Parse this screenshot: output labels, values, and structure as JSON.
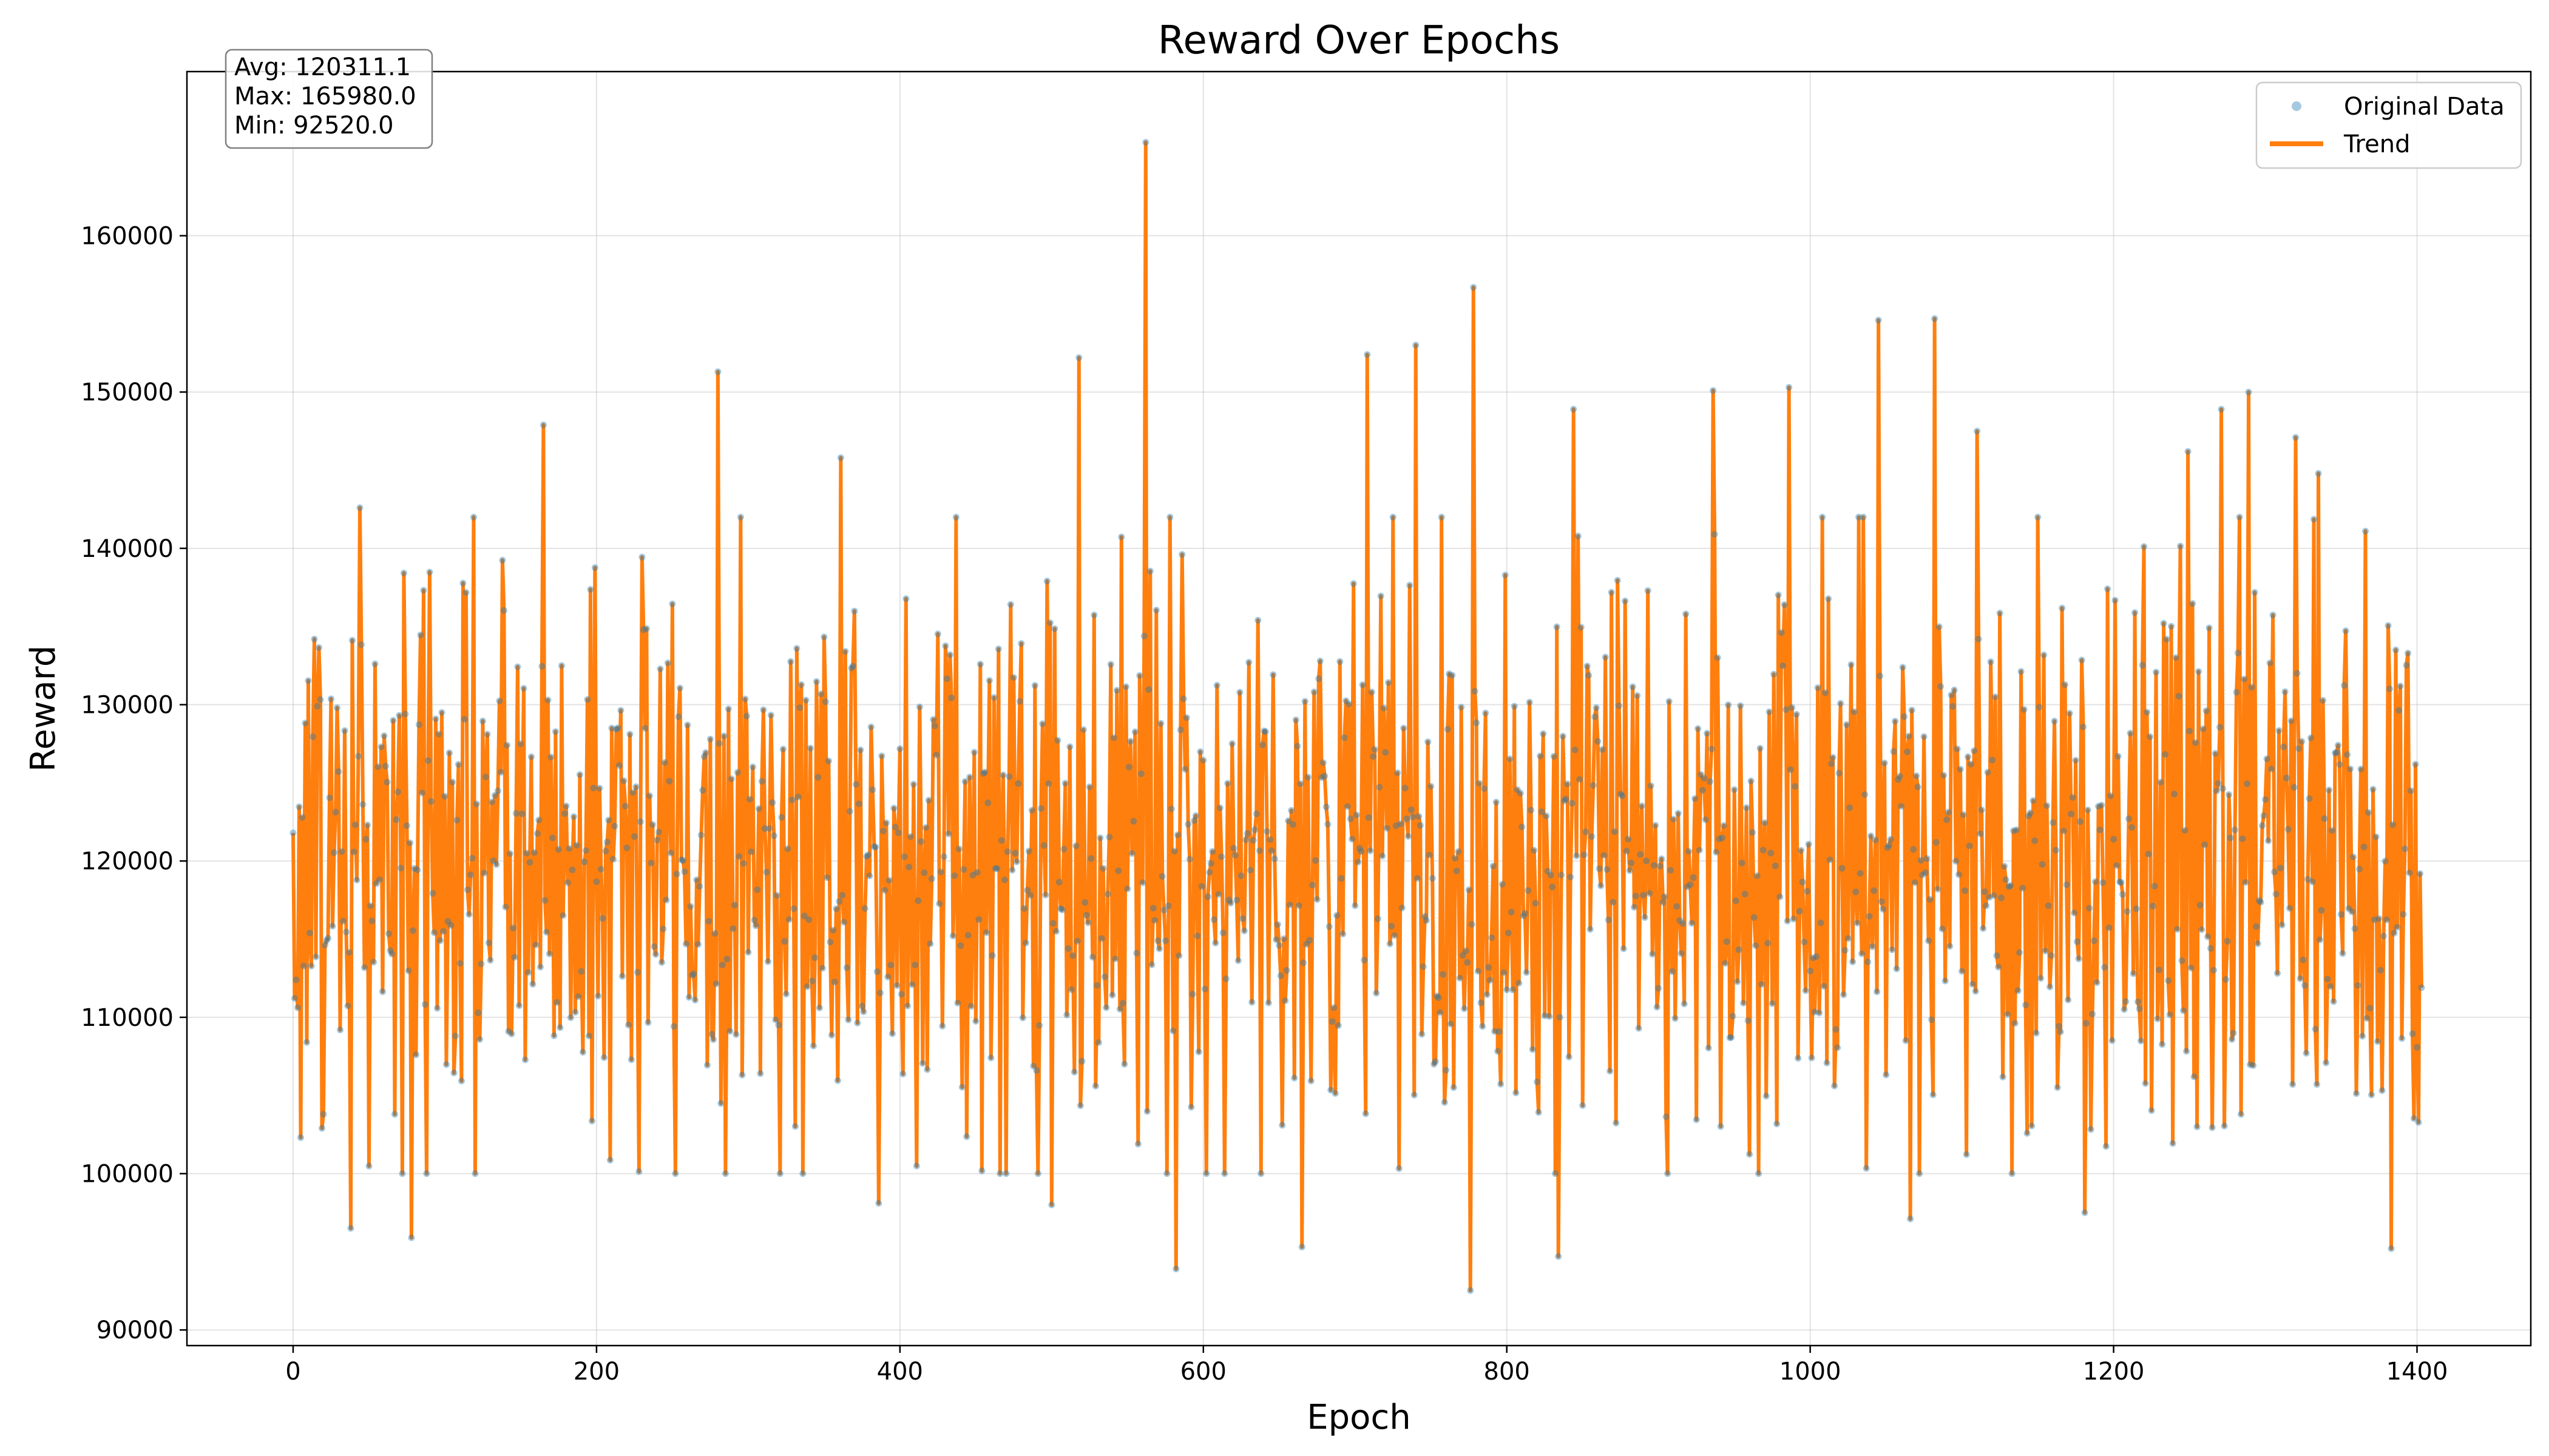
{
  "chart_data": {
    "type": "line",
    "title": "Reward Over Epochs",
    "xlabel": "Epoch",
    "ylabel": "Reward",
    "xlim": [
      -70,
      1475
    ],
    "ylim": [
      89000,
      170500
    ],
    "xticks": [
      0,
      200,
      400,
      600,
      800,
      1000,
      1200,
      1400
    ],
    "yticks": [
      90000,
      100000,
      110000,
      120000,
      130000,
      140000,
      150000,
      160000
    ],
    "grid": true,
    "legend_position": "top-right",
    "stats": {
      "avg_label": "Avg: 120311.1",
      "max_label": "Max: 165980.0",
      "min_label": "Min: 92520.0"
    },
    "colors": {
      "trend": "#ff7f0e",
      "points": "#1f77b4"
    },
    "series": [
      {
        "name": "Original Data",
        "style": "markers",
        "n_points": 1404,
        "x_start": 0,
        "x_end": 1403,
        "mean": 120311.1,
        "max": 165980.0,
        "min": 92520.0,
        "typical_range": [
          100000,
          142000
        ],
        "notable_points": [
          {
            "x": 0,
            "y": 121800
          },
          {
            "x": 2,
            "y": 112400
          },
          {
            "x": 14,
            "y": 134200
          },
          {
            "x": 19,
            "y": 102900
          },
          {
            "x": 38,
            "y": 96500
          },
          {
            "x": 44,
            "y": 142600
          },
          {
            "x": 78,
            "y": 95900
          },
          {
            "x": 165,
            "y": 147900
          },
          {
            "x": 280,
            "y": 151300
          },
          {
            "x": 361,
            "y": 145800
          },
          {
            "x": 386,
            "y": 98100
          },
          {
            "x": 500,
            "y": 98000
          },
          {
            "x": 518,
            "y": 152200
          },
          {
            "x": 562,
            "y": 165980
          },
          {
            "x": 582,
            "y": 93900
          },
          {
            "x": 665,
            "y": 95300
          },
          {
            "x": 708,
            "y": 152400
          },
          {
            "x": 740,
            "y": 153000
          },
          {
            "x": 776,
            "y": 92520
          },
          {
            "x": 778,
            "y": 156700
          },
          {
            "x": 834,
            "y": 94700
          },
          {
            "x": 844,
            "y": 148900
          },
          {
            "x": 936,
            "y": 150100
          },
          {
            "x": 986,
            "y": 150300
          },
          {
            "x": 1045,
            "y": 154600
          },
          {
            "x": 1066,
            "y": 97100
          },
          {
            "x": 1082,
            "y": 154700
          },
          {
            "x": 1110,
            "y": 147500
          },
          {
            "x": 1181,
            "y": 97500
          },
          {
            "x": 1249,
            "y": 146200
          },
          {
            "x": 1271,
            "y": 148900
          },
          {
            "x": 1289,
            "y": 150000
          },
          {
            "x": 1320,
            "y": 147100
          },
          {
            "x": 1335,
            "y": 144800
          },
          {
            "x": 1366,
            "y": 141100
          },
          {
            "x": 1383,
            "y": 95200
          },
          {
            "x": 1394,
            "y": 133300
          },
          {
            "x": 1403,
            "y": 111900
          }
        ]
      },
      {
        "name": "Trend",
        "style": "line",
        "follows": "Original Data"
      }
    ]
  }
}
